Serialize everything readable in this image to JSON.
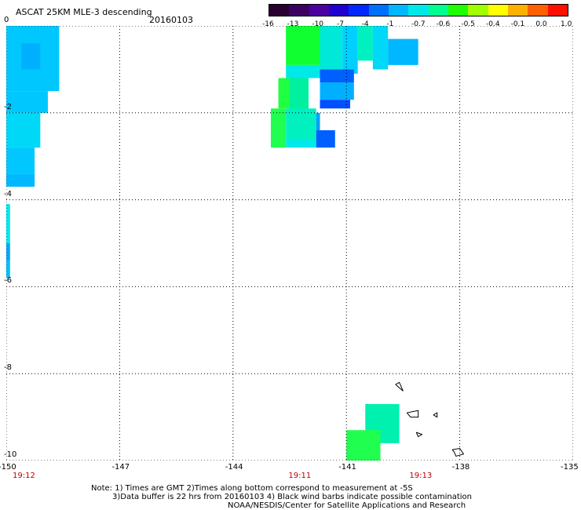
{
  "header": {
    "title": "ASCAT 25KM MLE-3 descending",
    "date": "20160103"
  },
  "colorbar": {
    "labels": [
      "-16",
      "-13",
      "-10",
      "-7",
      "-4",
      "-1",
      "-0.7",
      "-0.6",
      "-0.5",
      "-0.4",
      "-0.1",
      "0.0",
      "1.0"
    ],
    "colors": [
      "#2a0030",
      "#3c0060",
      "#4b00a0",
      "#2000d0",
      "#0028ff",
      "#0070ff",
      "#00b8ff",
      "#00e8e8",
      "#00ff90",
      "#20ff00",
      "#a0ff00",
      "#ffff00",
      "#ffb000",
      "#ff6000",
      "#ff1000"
    ]
  },
  "axes": {
    "x_ticks": [
      "-150",
      "-147",
      "-144",
      "-141",
      "-138",
      "-135"
    ],
    "y_ticks": [
      "0",
      "-2",
      "-4",
      "-6",
      "-8",
      "-10"
    ],
    "xlim": [
      -150,
      -135
    ],
    "ylim": [
      -10,
      0
    ],
    "grid": true
  },
  "times": [
    {
      "label": "19:12",
      "x": -150
    },
    {
      "label": "19:11",
      "x": -142.7
    },
    {
      "label": "19:13",
      "x": -139.5
    }
  ],
  "notes": {
    "line1": "Note: 1) Times are GMT 2)Times along bottom correspond to measurement at -5S",
    "line2": "3)Data buffer is 22 hrs from 20160103 4) Black wind barbs indicate possible contamination",
    "line3": "NOAA/NESDIS/Center for Satellite Applications and Research"
  },
  "colors": {
    "grid": "#000000",
    "time_label": "#c00000"
  },
  "map_data": {
    "cells": [
      {
        "lon": -150.0,
        "lat": 0.0,
        "w": 1.4,
        "h": 1.5,
        "color": "#00c8ff"
      },
      {
        "lon": -149.6,
        "lat": -0.4,
        "w": 0.5,
        "h": 0.6,
        "color": "#00b0ff"
      },
      {
        "lon": -150.0,
        "lat": -1.5,
        "w": 1.1,
        "h": 0.5,
        "color": "#00c8ff"
      },
      {
        "lon": -150.0,
        "lat": -2.0,
        "w": 0.9,
        "h": 0.8,
        "color": "#00d8f8"
      },
      {
        "lon": -150.0,
        "lat": -2.8,
        "w": 0.75,
        "h": 0.6,
        "color": "#00c8ff"
      },
      {
        "lon": -150.0,
        "lat": -3.4,
        "w": 0.75,
        "h": 0.3,
        "color": "#00b8ff"
      },
      {
        "lon": -150.0,
        "lat": -4.1,
        "w": 0.1,
        "h": 0.9,
        "color": "#00e8f0"
      },
      {
        "lon": -150.0,
        "lat": -5.0,
        "w": 0.1,
        "h": 0.4,
        "color": "#00a8ff"
      },
      {
        "lon": -150.0,
        "lat": -5.4,
        "w": 0.1,
        "h": 0.4,
        "color": "#00c0ff"
      },
      {
        "lon": -142.6,
        "lat": 0.0,
        "w": 0.9,
        "h": 0.9,
        "color": "#10ff30"
      },
      {
        "lon": -141.7,
        "lat": 0.0,
        "w": 0.6,
        "h": 1.0,
        "color": "#00e8d8"
      },
      {
        "lon": -141.1,
        "lat": 0.0,
        "w": 0.4,
        "h": 1.1,
        "color": "#00d0ff"
      },
      {
        "lon": -140.7,
        "lat": 0.0,
        "w": 0.4,
        "h": 0.8,
        "color": "#00f0c0"
      },
      {
        "lon": -140.3,
        "lat": 0.0,
        "w": 0.4,
        "h": 1.0,
        "color": "#00d8f8"
      },
      {
        "lon": -139.9,
        "lat": -0.3,
        "w": 0.8,
        "h": 0.6,
        "color": "#00b8ff"
      },
      {
        "lon": -142.6,
        "lat": -0.9,
        "w": 0.9,
        "h": 0.3,
        "color": "#00e8e8"
      },
      {
        "lon": -141.7,
        "lat": -1.0,
        "w": 0.9,
        "h": 0.3,
        "color": "#0060ff"
      },
      {
        "lon": -141.7,
        "lat": -1.3,
        "w": 0.9,
        "h": 0.4,
        "color": "#00b0ff"
      },
      {
        "lon": -141.7,
        "lat": -1.7,
        "w": 0.8,
        "h": 0.2,
        "color": "#0050ff"
      },
      {
        "lon": -142.8,
        "lat": -1.2,
        "w": 0.3,
        "h": 0.7,
        "color": "#20ff40"
      },
      {
        "lon": -142.5,
        "lat": -1.2,
        "w": 0.5,
        "h": 0.9,
        "color": "#00f0a0"
      },
      {
        "lon": -143.0,
        "lat": -1.9,
        "w": 0.4,
        "h": 0.9,
        "color": "#20ff50"
      },
      {
        "lon": -142.6,
        "lat": -1.9,
        "w": 0.8,
        "h": 0.7,
        "color": "#00f0c0"
      },
      {
        "lon": -142.6,
        "lat": -2.6,
        "w": 0.8,
        "h": 0.2,
        "color": "#00e8e8"
      },
      {
        "lon": -141.8,
        "lat": -2.0,
        "w": 0.1,
        "h": 0.4,
        "color": "#00a0ff"
      },
      {
        "lon": -141.8,
        "lat": -2.4,
        "w": 0.5,
        "h": 0.4,
        "color": "#0060ff"
      },
      {
        "lon": -140.5,
        "lat": -8.7,
        "w": 0.9,
        "h": 0.9,
        "color": "#00f0b0"
      },
      {
        "lon": -141.0,
        "lat": -9.3,
        "w": 0.9,
        "h": 0.9,
        "color": "#20ff50"
      }
    ],
    "coast": [
      [
        [
          -139.7,
          -8.25
        ],
        [
          -139.5,
          -8.4
        ],
        [
          -139.6,
          -8.2
        ],
        [
          -139.7,
          -8.25
        ]
      ],
      [
        [
          -139.4,
          -8.9
        ],
        [
          -139.1,
          -8.85
        ],
        [
          -139.1,
          -9.0
        ],
        [
          -139.3,
          -9.0
        ],
        [
          -139.4,
          -8.9
        ]
      ],
      [
        [
          -138.7,
          -8.95
        ],
        [
          -138.6,
          -8.9
        ],
        [
          -138.6,
          -9.0
        ],
        [
          -138.7,
          -8.95
        ]
      ],
      [
        [
          -139.15,
          -9.35
        ],
        [
          -139.0,
          -9.4
        ],
        [
          -139.1,
          -9.45
        ],
        [
          -139.15,
          -9.35
        ]
      ],
      [
        [
          -138.2,
          -9.75
        ],
        [
          -138.0,
          -9.72
        ],
        [
          -137.9,
          -9.85
        ],
        [
          -138.1,
          -9.9
        ],
        [
          -138.15,
          -9.8
        ],
        [
          -138.2,
          -9.75
        ]
      ]
    ]
  }
}
